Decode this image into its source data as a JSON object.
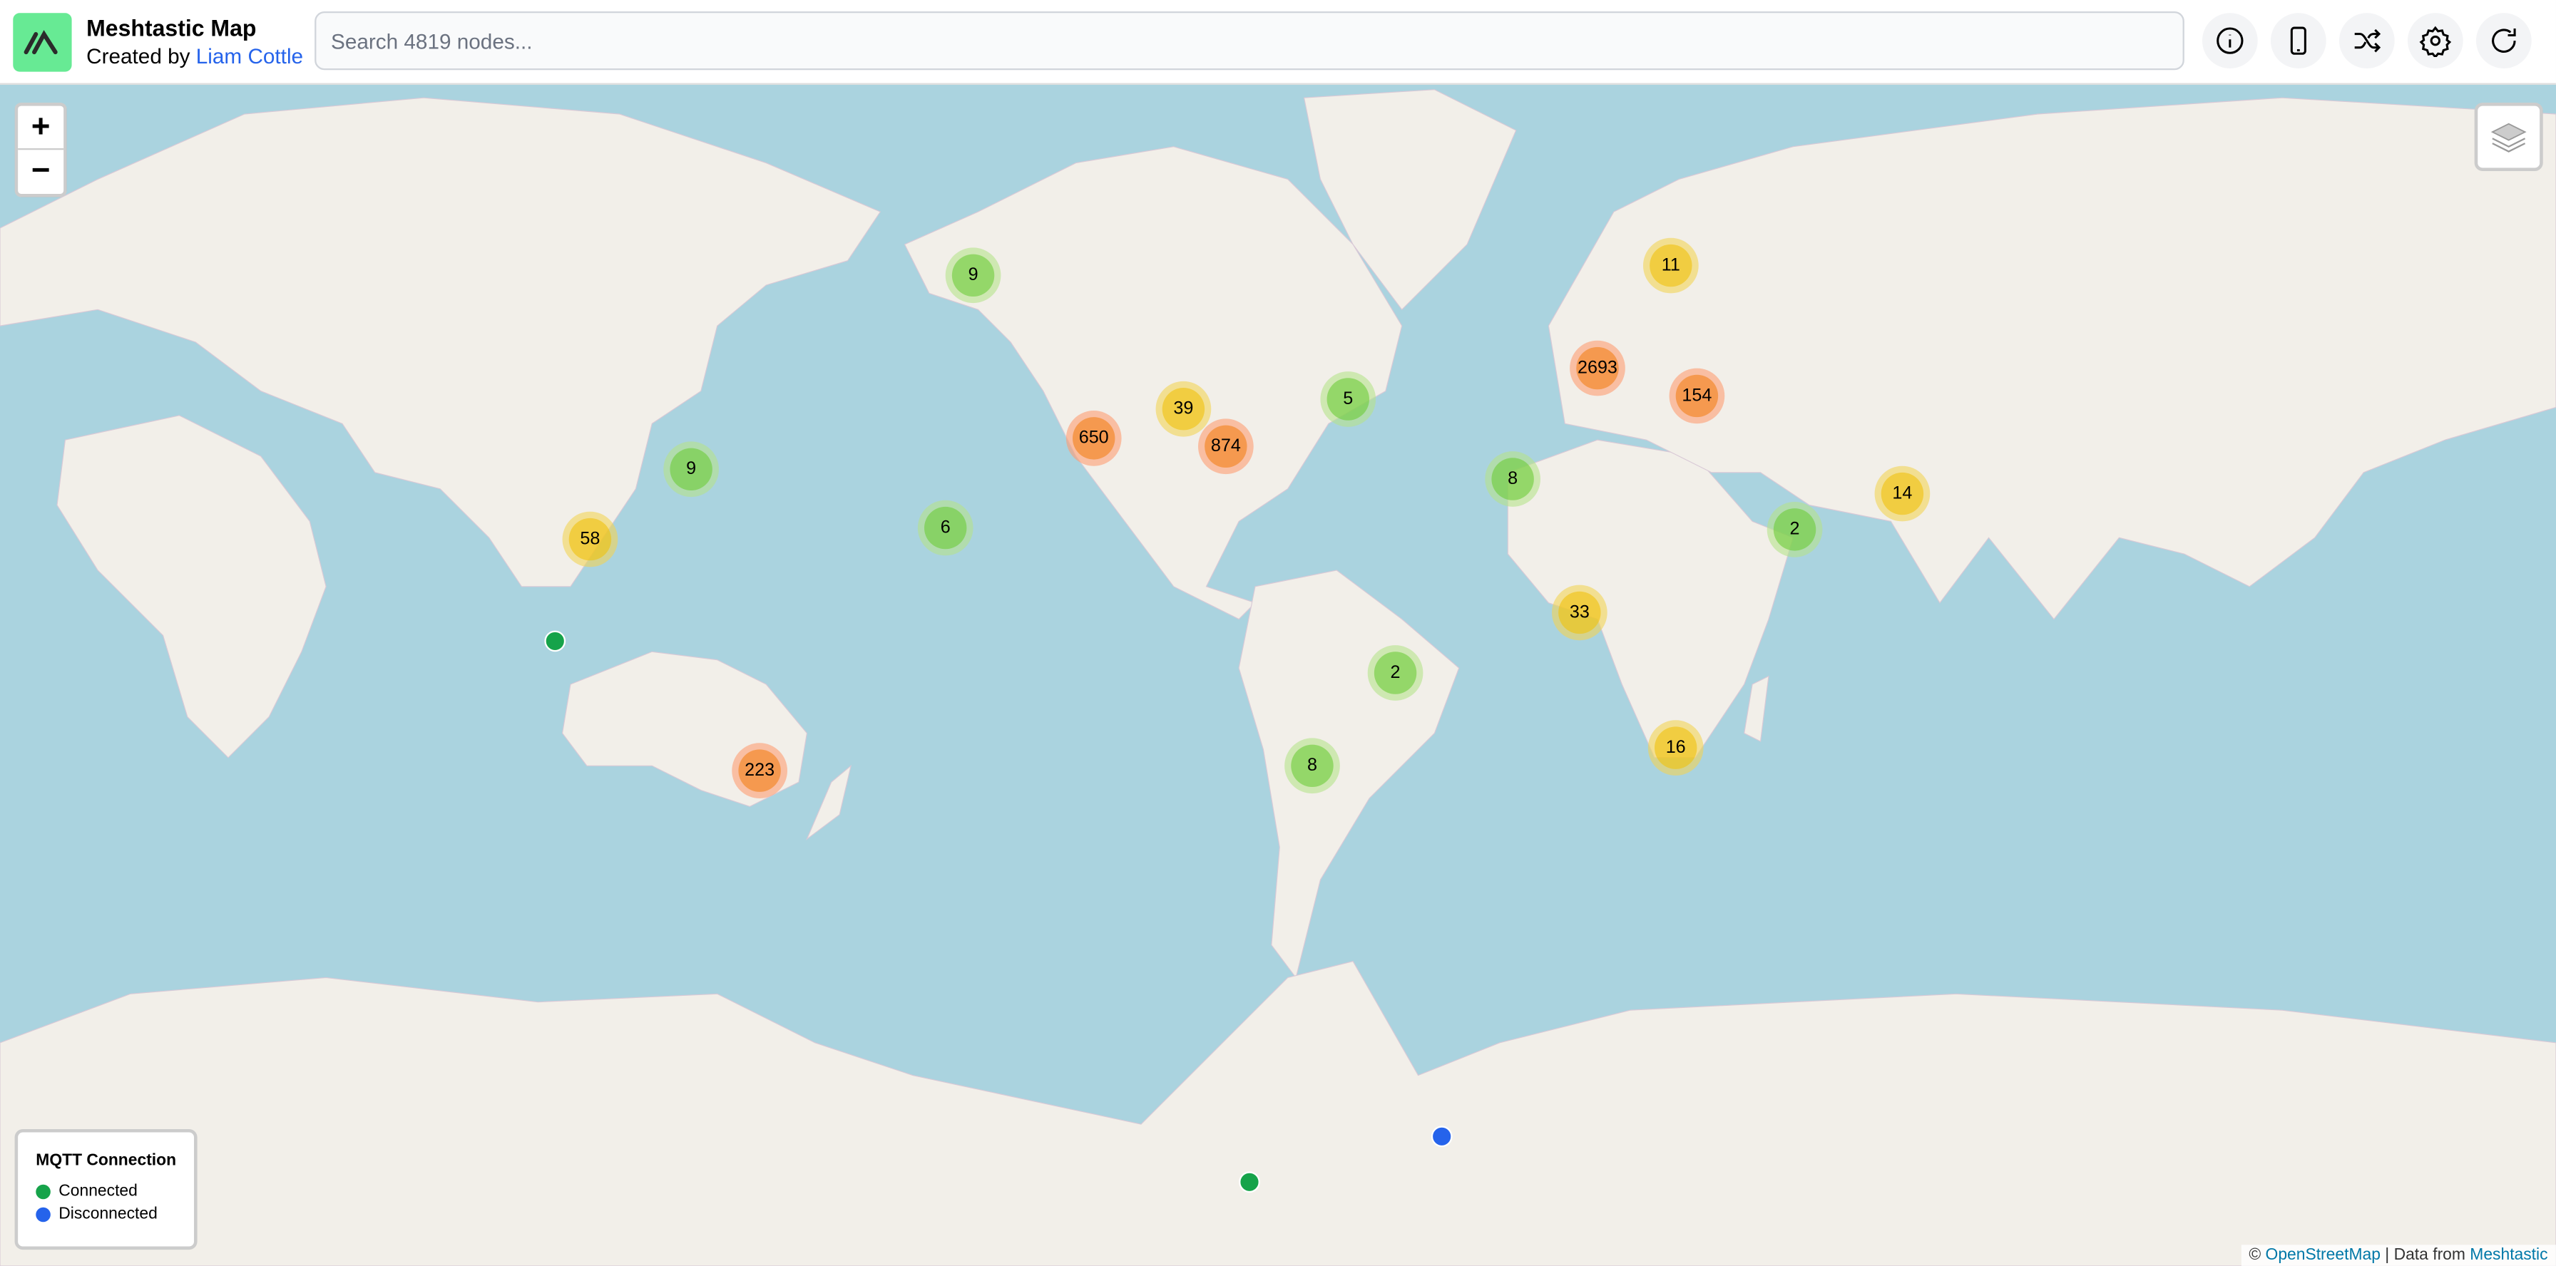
{
  "header": {
    "title": "Meshtastic Map",
    "created_by": "Created by",
    "author": "Liam Cottle",
    "search_placeholder": "Search 4819 nodes...",
    "buttons": [
      {
        "icon": "info-icon"
      },
      {
        "icon": "phone-icon"
      },
      {
        "icon": "shuffle-icon"
      },
      {
        "icon": "gear-icon"
      },
      {
        "icon": "refresh-icon"
      }
    ]
  },
  "map": {
    "zoom_in": "+",
    "zoom_out": "−",
    "layers_icon": "layers-icon",
    "colors": {
      "water": "#aad3df",
      "land": "#f2efe9",
      "connected": "#16a34a",
      "disconnected": "#2563eb"
    },
    "clusters": [
      {
        "count": "9",
        "level": "small"
      },
      {
        "count": "11",
        "level": "medium"
      },
      {
        "count": "2693",
        "level": "large"
      },
      {
        "count": "154",
        "level": "large"
      },
      {
        "count": "5",
        "level": "small"
      },
      {
        "count": "39",
        "level": "medium"
      },
      {
        "count": "650",
        "level": "large"
      },
      {
        "count": "874",
        "level": "large"
      },
      {
        "count": "9",
        "level": "small"
      },
      {
        "count": "8",
        "level": "small"
      },
      {
        "count": "58",
        "level": "medium"
      },
      {
        "count": "6",
        "level": "small"
      },
      {
        "count": "2",
        "level": "small"
      },
      {
        "count": "14",
        "level": "medium"
      },
      {
        "count": "33",
        "level": "medium"
      },
      {
        "count": "2",
        "level": "small"
      },
      {
        "count": "223",
        "level": "large"
      },
      {
        "count": "8",
        "level": "small"
      },
      {
        "count": "16",
        "level": "medium"
      }
    ],
    "nodes": [
      {
        "status": "connected"
      },
      {
        "status": "disconnected"
      },
      {
        "status": "connected"
      }
    ]
  },
  "legend": {
    "title": "MQTT Connection",
    "connected": "Connected",
    "disconnected": "Disconnected"
  },
  "attribution": {
    "prefix": "©",
    "osm": "OpenStreetMap",
    "separator": "| Data from",
    "meshtastic": "Meshtastic"
  }
}
